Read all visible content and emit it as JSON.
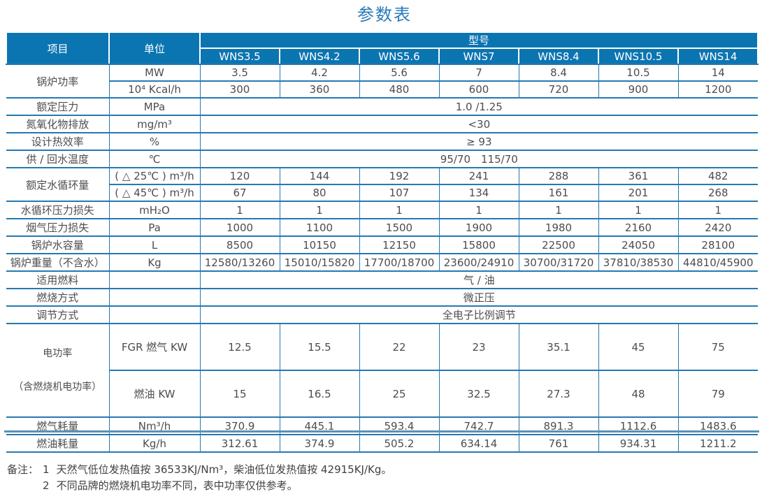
{
  "title": "参数表",
  "table": {
    "header": {
      "item": "项目",
      "unit": "单位",
      "model_group": "型号",
      "models": [
        "WNS3.5",
        "WNS4.2",
        "WNS5.6",
        "WNS7",
        "WNS8.4",
        "WNS10.5",
        "WNS14"
      ]
    },
    "rows": {
      "power": {
        "label": "锅炉功率",
        "sub": [
          {
            "unit": "MW",
            "values": [
              "3.5",
              "4.2",
              "5.6",
              "7",
              "8.4",
              "10.5",
              "14"
            ]
          },
          {
            "unit": "10⁴ Kcal/h",
            "values": [
              "300",
              "360",
              "480",
              "600",
              "720",
              "900",
              "1200"
            ]
          }
        ]
      },
      "pressure": {
        "label": "额定压力",
        "unit": "MPa",
        "value": "1.0 /1.25"
      },
      "nox": {
        "label": "氮氧化物排放",
        "unit": "mg/m³",
        "value": "<30"
      },
      "efficiency": {
        "label": "设计热效率",
        "unit": "%",
        "value": "≥ 93"
      },
      "water_temp": {
        "label": "供 / 回水温度",
        "unit": "℃",
        "value": "95/70　115/70"
      },
      "circulation": {
        "label": "额定水循环量",
        "sub": [
          {
            "unit": "( △ 25℃ ) m³/h",
            "values": [
              "120",
              "144",
              "192",
              "241",
              "288",
              "361",
              "482"
            ]
          },
          {
            "unit": "( △ 45℃ ) m³/h",
            "values": [
              "67",
              "80",
              "107",
              "134",
              "161",
              "201",
              "268"
            ]
          }
        ]
      },
      "circ_loss": {
        "label": "水循环压力损失",
        "unit": "mH₂O",
        "values": [
          "1",
          "1",
          "1",
          "1",
          "1",
          "1",
          "1"
        ]
      },
      "flue_loss": {
        "label": "烟气压力损失",
        "unit": "Pa",
        "values": [
          "1000",
          "1100",
          "1500",
          "1900",
          "1980",
          "2160",
          "2420"
        ]
      },
      "water_capacity": {
        "label": "锅炉水容量",
        "unit": "L",
        "values": [
          "8500",
          "10150",
          "12150",
          "15800",
          "22500",
          "24050",
          "28100"
        ]
      },
      "weight": {
        "label": "锅炉重量（不含水）",
        "unit": "Kg",
        "values": [
          "12580/13260",
          "15010/15820",
          "17700/18700",
          "23600/24910",
          "30700/31720",
          "37810/38530",
          "44810/45900"
        ]
      },
      "fuel": {
        "label": "适用燃料",
        "unit": "",
        "value": "气 / 油"
      },
      "combustion": {
        "label": "燃烧方式",
        "unit": "",
        "value": "微正压"
      },
      "regulation": {
        "label": "调节方式",
        "unit": "",
        "value": "全电子比例调节"
      },
      "electric": {
        "label": "电功率",
        "label2": "（含燃烧机电功率）",
        "sub": [
          {
            "unit": "FGR 燃气 KW",
            "values": [
              "12.5",
              "15.5",
              "22",
              "23",
              "35.1",
              "45",
              "75"
            ]
          },
          {
            "unit": "燃油 KW",
            "values": [
              "15",
              "16.5",
              "25",
              "32.5",
              "27.3",
              "48",
              "79"
            ]
          }
        ]
      },
      "gas_consumption": {
        "label": "燃气耗量",
        "unit": "Nm³/h",
        "values": [
          "370.9",
          "445.1",
          "593.4",
          "742.7",
          "891.3",
          "1112.6",
          "1483.6"
        ]
      },
      "oil_consumption": {
        "label": "燃油耗量",
        "unit": "Kg/h",
        "values": [
          "312.61",
          "374.9",
          "505.2",
          "634.14",
          "761",
          "934.31",
          "1211.2"
        ]
      }
    }
  },
  "notes": {
    "label": "备注：",
    "items": [
      {
        "num": "1",
        "text": "天然气低位发热值按 36533KJ/Nm³，柴油低位发热值按 42915KJ/Kg。"
      },
      {
        "num": "2",
        "text": "不同品牌的燃烧机电功率不同，表中功率仅供参考。"
      }
    ]
  },
  "colors": {
    "header_bg": "#0b75b2",
    "border_blue": "#2678b2",
    "title_blue": "#2b7ab8",
    "bottom_rule": "#5b92b4"
  }
}
